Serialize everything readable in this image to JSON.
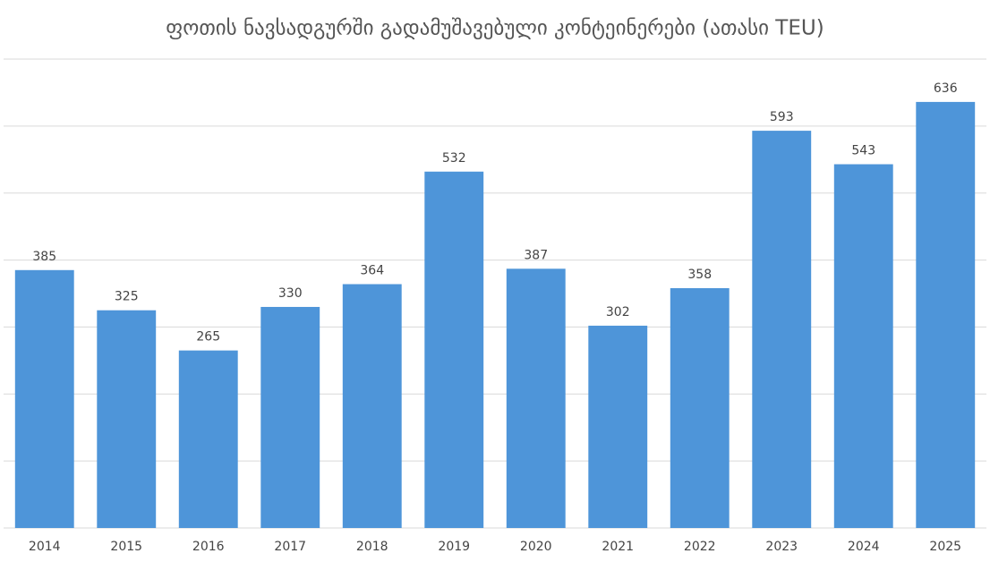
{
  "chart_data": {
    "type": "bar",
    "title": "ფოთის ნავსადგურში გადამუშავებული კონტეინერები (ათასი TEU)",
    "categories": [
      "2014",
      "2015",
      "2016",
      "2017",
      "2018",
      "2019",
      "2020",
      "2021",
      "2022",
      "2023",
      "2024",
      "2025"
    ],
    "values": [
      385,
      325,
      265,
      330,
      364,
      532,
      387,
      302,
      358,
      593,
      543,
      636
    ],
    "color": "#4e95d9",
    "ylim": [
      0,
      700
    ],
    "yticks": [
      0,
      100,
      200,
      300,
      400,
      500,
      600,
      700
    ],
    "grid": true
  }
}
